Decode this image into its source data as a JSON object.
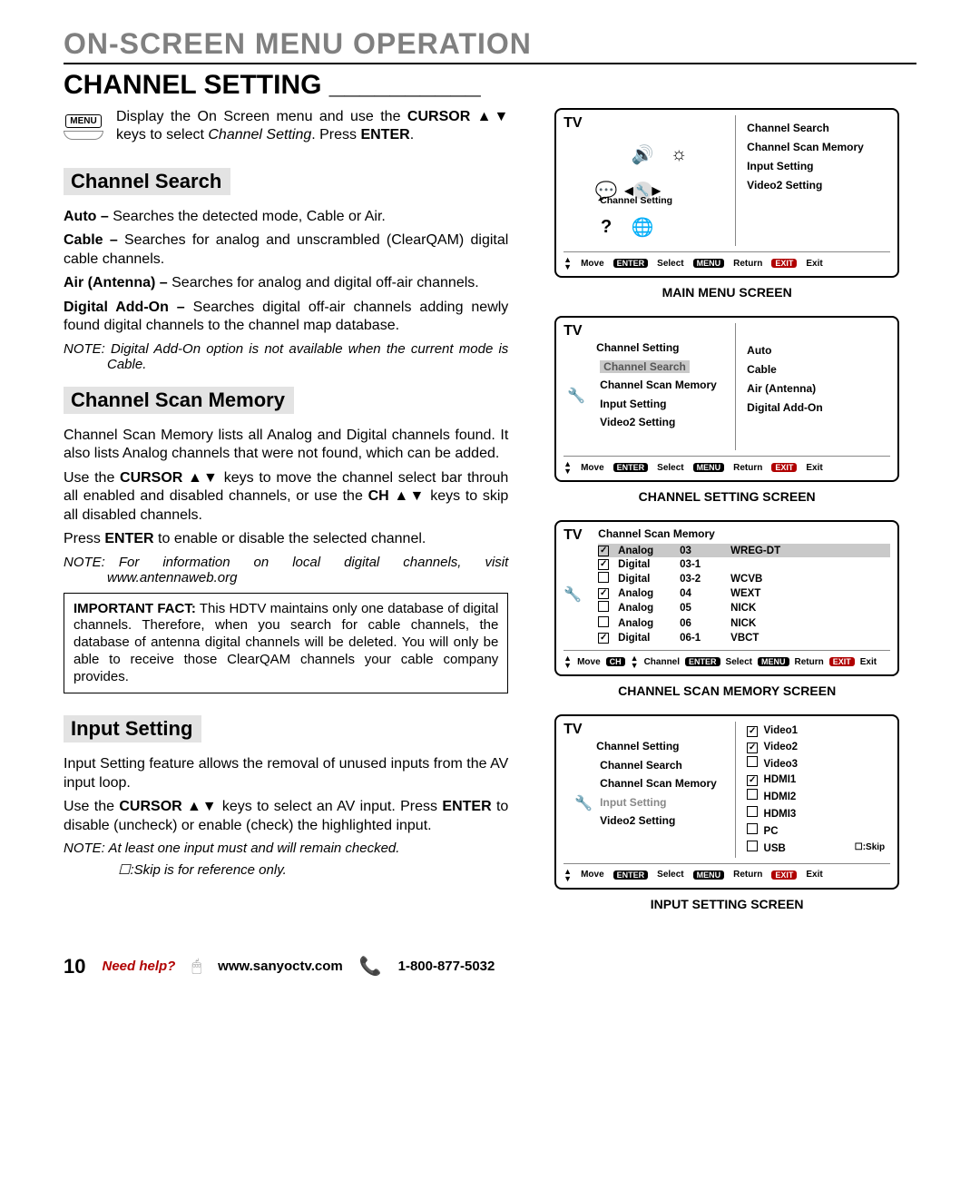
{
  "page": {
    "main_title": "ON-SCREEN MENU OPERATION",
    "sub_title": "CHANNEL SETTING __________",
    "page_number": "10",
    "need_help": "Need help?",
    "website": "www.sanyoctv.com",
    "phone": "1-800-877-5032"
  },
  "intro": {
    "menu_label": "MENU",
    "text1": "Display the On Screen menu and use the ",
    "text2": "CURSOR ▲▼",
    "text3": " keys to select ",
    "text4": "Channel Setting",
    "text5": ". Press ",
    "text6": "ENTER",
    "text7": "."
  },
  "sec_search": {
    "title": "Channel Search",
    "auto_b": "Auto – ",
    "auto": "Searches the detected mode, Cable or Air.",
    "cable_b": "Cable – ",
    "cable": "Searches for analog and unscrambled (ClearQAM) digital cable channels.",
    "air_b": "Air (Antenna) – ",
    "air": "Searches for analog and digital off-air channels.",
    "addon_b": "Digital Add-On – ",
    "addon": "Searches digital off-air channels adding newly found digital channels to the channel map database.",
    "note": "NOTE: Digital Add-On option is not available when the current mode is Cable."
  },
  "sec_scan": {
    "title": "Channel Scan Memory",
    "p1": "Channel Scan Memory lists all Analog and Digital channels found. It also lists Analog channels that were not found, which can be added.",
    "p2a": "Use the ",
    "p2b": "CURSOR ▲▼",
    "p2c": " keys to move the channel select bar throuh all enabled and disabled channels, or use the ",
    "p2d": "CH ▲▼",
    "p2e": " keys to skip all disabled channels.",
    "p3a": "Press ",
    "p3b": "ENTER",
    "p3c": " to enable or disable the selected channel.",
    "note": "NOTE: For information on local digital channels, visit www.antennaweb.org",
    "fact_b": "IMPORTANT FACT:",
    "fact": " This HDTV maintains only one database of digital channels. Therefore, when you search for cable channels, the database of antenna digital channels will be deleted. You will only be able to receive those ClearQAM channels your cable company provides."
  },
  "sec_input": {
    "title": "Input Setting",
    "p1": "Input Setting feature allows the removal of unused inputs from the AV input loop.",
    "p2a": "Use the ",
    "p2b": "CURSOR ▲▼",
    "p2c": " keys to select an AV input. Press ",
    "p2d": "ENTER",
    "p2e": " to disable (uncheck) or enable (check) the highlighted  input.",
    "note1": "NOTE: At least one input must and will remain checked.",
    "note2": "    ☐:Skip is for reference only."
  },
  "screens": {
    "main": {
      "caption": "MAIN MENU SCREEN",
      "tv": "TV",
      "channel_setting": "Channel Setting",
      "items": [
        "Channel Search",
        "Channel Scan Memory",
        "Input Setting",
        "Video2 Setting"
      ],
      "move": "Move",
      "enter": "ENTER",
      "select": "Select",
      "menu": "MENU",
      "return": "Return",
      "exit": "EXIT",
      "exitl": "Exit"
    },
    "setting": {
      "caption": "CHANNEL SETTING SCREEN",
      "tv": "TV",
      "title": "Channel Setting",
      "left": [
        "Channel Search",
        "Channel Scan Memory",
        "Input Setting",
        "Video2 Setting"
      ],
      "right": [
        "Auto",
        "Cable",
        "Air (Antenna)",
        "Digital Add-On"
      ]
    },
    "scan": {
      "caption": "CHANNEL SCAN MEMORY SCREEN",
      "tv": "TV",
      "title": "Channel Scan Memory",
      "rows": [
        {
          "c": true,
          "t": "Analog",
          "n": "03",
          "s": "WREG-DT",
          "hl": true
        },
        {
          "c": true,
          "t": "Digital",
          "n": "03-1",
          "s": ""
        },
        {
          "c": false,
          "t": "Digital",
          "n": "03-2",
          "s": "WCVB"
        },
        {
          "c": true,
          "t": "Analog",
          "n": "04",
          "s": "WEXT"
        },
        {
          "c": false,
          "t": "Analog",
          "n": "05",
          "s": "NICK"
        },
        {
          "c": false,
          "t": "Analog",
          "n": "06",
          "s": "NICK"
        },
        {
          "c": true,
          "t": "Digital",
          "n": "06-1",
          "s": "VBCT"
        }
      ],
      "ch": "CH",
      "channel": "Channel"
    },
    "input": {
      "caption": "INPUT SETTING SCREEN",
      "tv": "TV",
      "title": "Channel Setting",
      "left": [
        "Channel Search",
        "Channel Scan Memory",
        "Input Setting",
        "Video2 Setting"
      ],
      "right": [
        {
          "c": true,
          "l": "Video1",
          "hl": true
        },
        {
          "c": true,
          "l": "Video2"
        },
        {
          "c": false,
          "l": "Video3"
        },
        {
          "c": true,
          "l": "HDMI1"
        },
        {
          "c": false,
          "l": "HDMI2"
        },
        {
          "c": false,
          "l": "HDMI3"
        },
        {
          "c": false,
          "l": "PC"
        },
        {
          "c": false,
          "l": "USB"
        }
      ],
      "skip": "☐:Skip"
    }
  }
}
